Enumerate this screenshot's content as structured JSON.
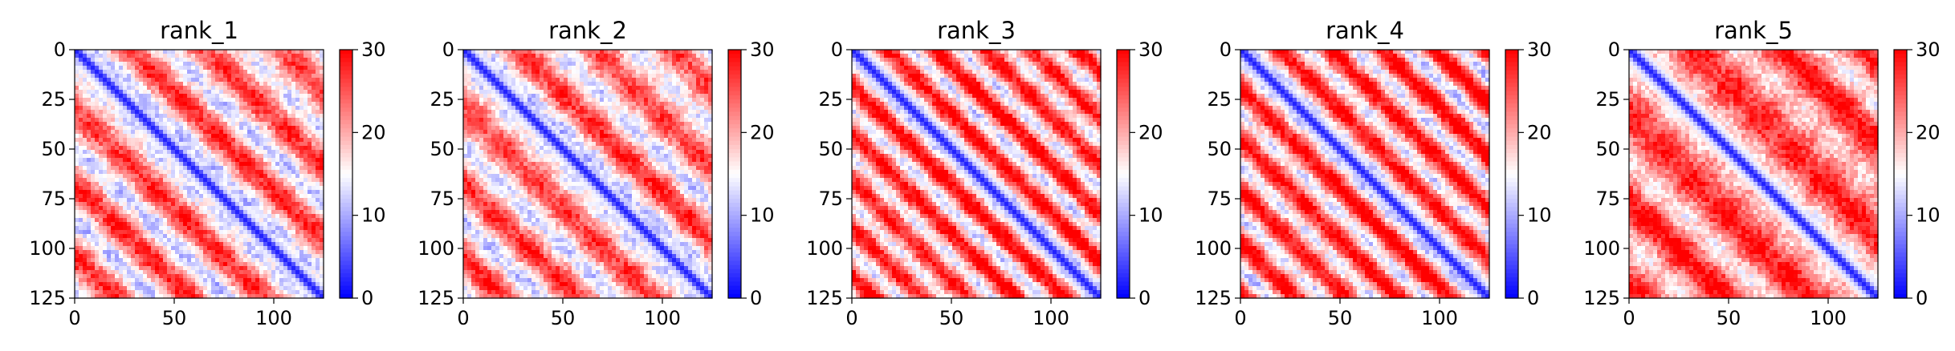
{
  "figure": {
    "colormap": {
      "name": "bwr",
      "low": "#0000ff",
      "mid": "#ffffff",
      "high": "#ff0000",
      "vmin": 0,
      "vmax": 30
    }
  },
  "chart_data": [
    {
      "type": "heatmap",
      "title": "rank_1",
      "xlabel": "",
      "ylabel": "",
      "matrix_size": 125,
      "xlim": [
        0,
        125
      ],
      "ylim": [
        125,
        0
      ],
      "x_ticks": [
        "0",
        "50",
        "100"
      ],
      "y_ticks": [
        "0",
        "25",
        "50",
        "75",
        "100",
        "125"
      ],
      "colorbar": {
        "range": [
          0,
          30
        ],
        "ticks": [
          "0",
          "10",
          "20",
          "30"
        ]
      },
      "grid": false,
      "pattern": {
        "diagonal_value": 2,
        "mean_value": 20,
        "band_period": 38,
        "band_strength": 7,
        "noise": 3,
        "seed": 11
      }
    },
    {
      "type": "heatmap",
      "title": "rank_2",
      "xlabel": "",
      "ylabel": "",
      "matrix_size": 125,
      "xlim": [
        0,
        125
      ],
      "ylim": [
        125,
        0
      ],
      "x_ticks": [
        "0",
        "50",
        "100"
      ],
      "y_ticks": [
        "0",
        "25",
        "50",
        "75",
        "100",
        "125"
      ],
      "colorbar": {
        "range": [
          0,
          30
        ],
        "ticks": [
          "0",
          "10",
          "20",
          "30"
        ]
      },
      "grid": false,
      "pattern": {
        "diagonal_value": 2,
        "mean_value": 20,
        "band_period": 38,
        "band_strength": 7,
        "noise": 3,
        "seed": 23
      }
    },
    {
      "type": "heatmap",
      "title": "rank_3",
      "xlabel": "",
      "ylabel": "",
      "matrix_size": 125,
      "xlim": [
        0,
        125
      ],
      "ylim": [
        125,
        0
      ],
      "x_ticks": [
        "0",
        "50",
        "100"
      ],
      "y_ticks": [
        "0",
        "25",
        "50",
        "75",
        "100",
        "125"
      ],
      "colorbar": {
        "range": [
          0,
          30
        ],
        "ticks": [
          "0",
          "10",
          "20",
          "30"
        ]
      },
      "grid": false,
      "pattern": {
        "diagonal_value": 2,
        "mean_value": 22,
        "band_period": 24,
        "band_strength": 8,
        "noise": 3,
        "seed": 37
      }
    },
    {
      "type": "heatmap",
      "title": "rank_4",
      "xlabel": "",
      "ylabel": "",
      "matrix_size": 125,
      "xlim": [
        0,
        125
      ],
      "ylim": [
        125,
        0
      ],
      "x_ticks": [
        "0",
        "50",
        "100"
      ],
      "y_ticks": [
        "0",
        "25",
        "50",
        "75",
        "100",
        "125"
      ],
      "colorbar": {
        "range": [
          0,
          30
        ],
        "ticks": [
          "0",
          "10",
          "20",
          "30"
        ]
      },
      "grid": false,
      "pattern": {
        "diagonal_value": 2,
        "mean_value": 22,
        "band_period": 26,
        "band_strength": 9,
        "noise": 3,
        "seed": 51
      }
    },
    {
      "type": "heatmap",
      "title": "rank_5",
      "xlabel": "",
      "ylabel": "",
      "matrix_size": 125,
      "xlim": [
        0,
        125
      ],
      "ylim": [
        125,
        0
      ],
      "x_ticks": [
        "0",
        "50",
        "100"
      ],
      "y_ticks": [
        "0",
        "25",
        "50",
        "75",
        "100",
        "125"
      ],
      "colorbar": {
        "range": [
          0,
          30
        ],
        "ticks": [
          "0",
          "10",
          "20",
          "30"
        ]
      },
      "grid": false,
      "pattern": {
        "diagonal_value": 2,
        "mean_value": 23,
        "band_period": 44,
        "band_strength": 6,
        "noise": 3,
        "seed": 67
      }
    }
  ]
}
